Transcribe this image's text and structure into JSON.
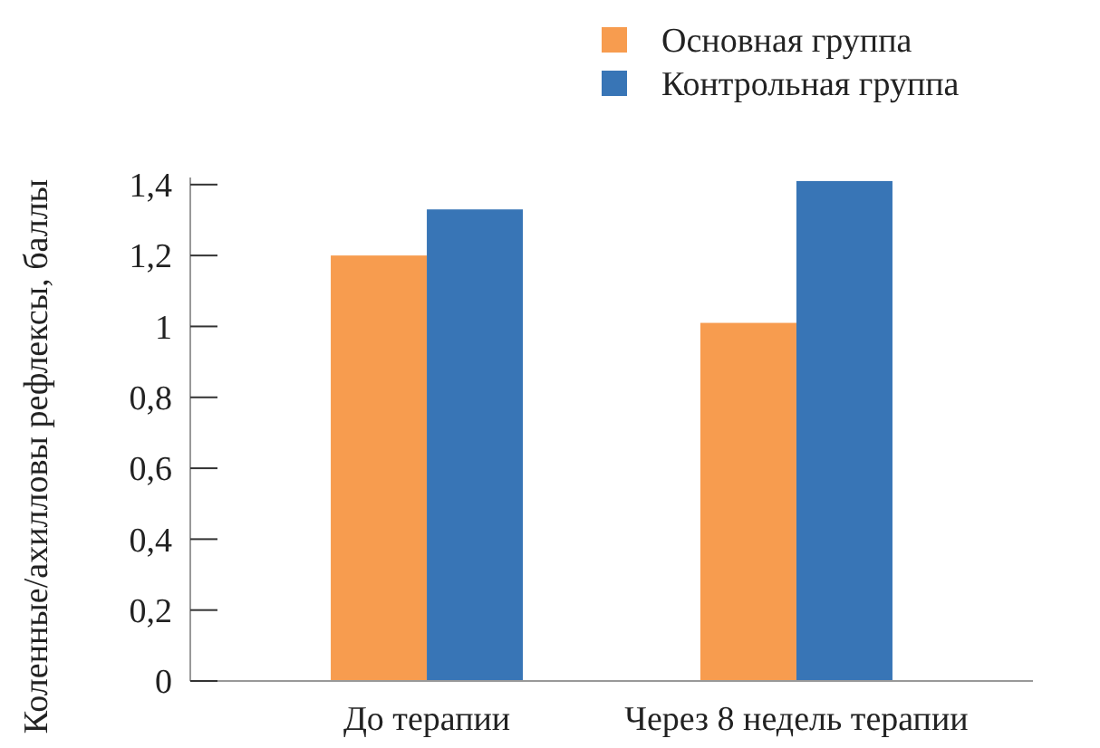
{
  "chart_data": {
    "type": "bar",
    "ylabel": "Коленные/ахилловы рефлексы, баллы",
    "categories": [
      "До терапии",
      "Через 8 недель терапии"
    ],
    "series": [
      {
        "name": "Основная группа",
        "color": "#f79c4f",
        "values": [
          1.2,
          1.01
        ]
      },
      {
        "name": "Контрольная группа",
        "color": "#3875b6",
        "values": [
          1.33,
          1.41
        ]
      }
    ],
    "ylim": [
      0,
      1.42
    ],
    "yticks": [
      0,
      {
        "value": 0.2,
        "label": "0,2"
      },
      {
        "value": 0.4,
        "label": "0,4"
      },
      {
        "value": 0.6,
        "label": "0,6"
      },
      {
        "value": 0.8,
        "label": "0,8"
      },
      1,
      {
        "value": 1.2,
        "label": "1,2"
      },
      {
        "value": 1.4,
        "label": "1,4"
      }
    ],
    "grid": false,
    "legend": "top right"
  }
}
